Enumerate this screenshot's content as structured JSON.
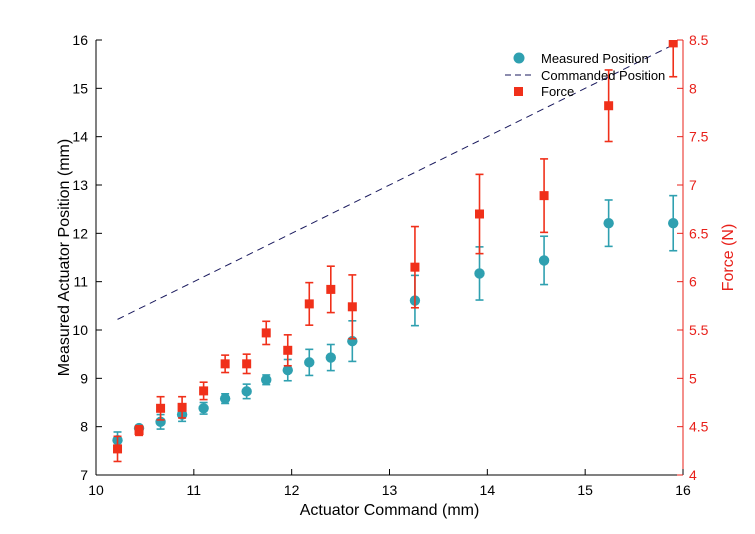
{
  "colors": {
    "position": "#2fa0b0",
    "force": "#f0301a",
    "commanded": "#1a1a5e",
    "axis_left": "#000000",
    "axis_right": "#e8201a"
  },
  "chart_data": {
    "type": "scatter",
    "title": "",
    "xlabel": "Actuator Command (mm)",
    "ylabel": "Measured Actuator Position (mm)",
    "y2label": "Force (N)",
    "xlim": [
      10,
      16
    ],
    "ylim": [
      7,
      16
    ],
    "y2lim": [
      4,
      8.5
    ],
    "x_ticks": [
      "10",
      "11",
      "12",
      "13",
      "14",
      "15",
      "16"
    ],
    "y_ticks": [
      "7",
      "8",
      "9",
      "10",
      "11",
      "12",
      "13",
      "14",
      "15",
      "16"
    ],
    "y2_ticks": [
      "4",
      "4.5",
      "5",
      "5.5",
      "6",
      "6.5",
      "7",
      "7.5",
      "8",
      "8.5"
    ],
    "legend_position": "top-right",
    "legend": [
      "Measured Position",
      "Commanded Position",
      "Force"
    ],
    "series": [
      {
        "name": "Measured Position",
        "marker": "circle",
        "axis": "left",
        "x": [
          10.22,
          10.44,
          10.66,
          10.88,
          11.1,
          11.32,
          11.54,
          11.74,
          11.96,
          12.18,
          12.4,
          12.62,
          13.26,
          13.92,
          14.58,
          15.24,
          15.9
        ],
        "y": [
          7.72,
          7.97,
          8.1,
          8.25,
          8.38,
          8.58,
          8.73,
          8.97,
          9.17,
          9.33,
          9.43,
          9.77,
          10.61,
          11.17,
          11.44,
          12.21,
          12.21
        ],
        "err": [
          0.17,
          0.05,
          0.15,
          0.14,
          0.12,
          0.1,
          0.15,
          0.1,
          0.22,
          0.27,
          0.27,
          0.42,
          0.52,
          0.55,
          0.5,
          0.48,
          0.57
        ]
      },
      {
        "name": "Commanded Position",
        "marker": "dashed-line",
        "axis": "left",
        "x": [
          10.22,
          15.9
        ],
        "y": [
          10.22,
          15.9
        ]
      },
      {
        "name": "Force",
        "marker": "square",
        "axis": "right",
        "x": [
          10.22,
          10.44,
          10.66,
          10.88,
          11.1,
          11.32,
          11.54,
          11.74,
          11.96,
          12.18,
          12.4,
          12.62,
          13.26,
          13.92,
          14.58,
          15.24,
          15.9
        ],
        "y": [
          4.27,
          4.46,
          4.69,
          4.7,
          4.87,
          5.15,
          5.15,
          5.47,
          5.29,
          5.77,
          5.92,
          5.74,
          6.15,
          6.7,
          6.89,
          7.82,
          8.47
        ],
        "err": [
          0.13,
          0.05,
          0.12,
          0.11,
          0.09,
          0.09,
          0.1,
          0.12,
          0.16,
          0.22,
          0.24,
          0.33,
          0.42,
          0.41,
          0.38,
          0.37,
          0.35
        ]
      }
    ]
  }
}
